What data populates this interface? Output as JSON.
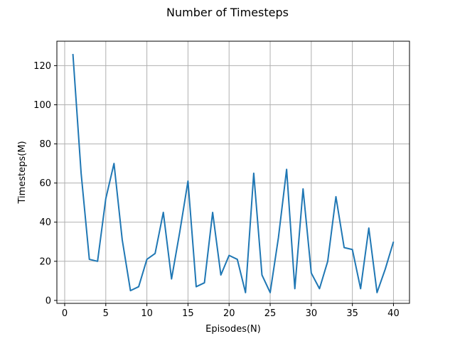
{
  "chart_data": {
    "type": "line",
    "title": "Number of Timesteps",
    "xlabel": "Episodes(N)",
    "ylabel": "Timesteps(M)",
    "xlim": [
      -0.95,
      41.95
    ],
    "ylim": [
      -1.5,
      132.5
    ],
    "xticks": [
      0,
      5,
      10,
      15,
      20,
      25,
      30,
      35,
      40
    ],
    "yticks": [
      0,
      20,
      40,
      60,
      80,
      100,
      120
    ],
    "grid": true,
    "line_color": "#1f77b4",
    "x": [
      1,
      2,
      3,
      4,
      5,
      6,
      7,
      8,
      9,
      10,
      11,
      12,
      13,
      14,
      15,
      16,
      17,
      18,
      19,
      20,
      21,
      22,
      23,
      24,
      25,
      26,
      27,
      28,
      29,
      30,
      31,
      32,
      33,
      34,
      35,
      36,
      37,
      38,
      39,
      40
    ],
    "values": [
      126,
      65,
      21,
      20,
      52,
      70,
      31,
      5,
      7,
      21,
      24,
      45,
      11,
      35,
      61,
      7,
      9,
      45,
      13,
      23,
      21,
      4,
      65,
      13,
      4,
      32,
      67,
      6,
      57,
      14,
      6,
      20,
      53,
      27,
      26,
      6,
      37,
      4,
      16,
      30
    ]
  }
}
